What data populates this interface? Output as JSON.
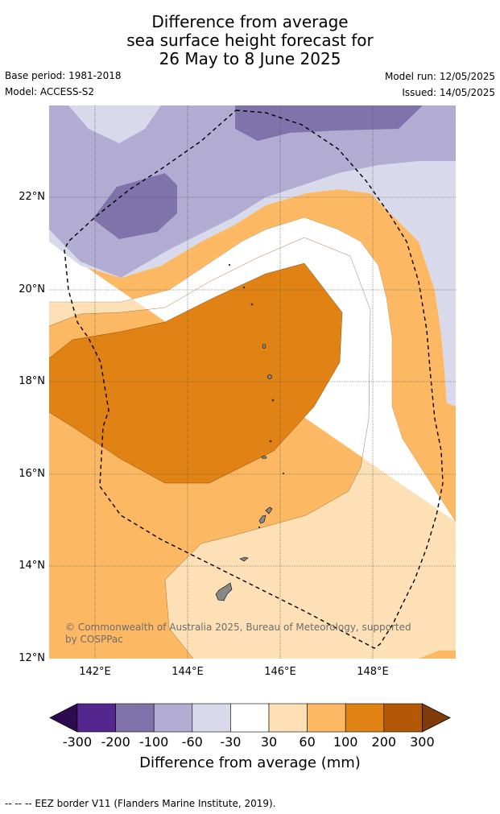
{
  "title": {
    "line1": "Difference from average",
    "line2": "sea surface height forecast for",
    "line3": "26 May to 8 June 2025"
  },
  "meta": {
    "base_period": "Base period: 1981-2018",
    "model": "Model: ACCESS-S2",
    "model_run": "Model run: 12/05/2025",
    "issued": "Issued: 14/05/2025"
  },
  "map": {
    "lat_labels": [
      "22°N",
      "20°N",
      "18°N",
      "16°N",
      "14°N",
      "12°N"
    ],
    "lon_labels": [
      "142°E",
      "144°E",
      "146°E",
      "148°E"
    ],
    "copyright": "© Commonwealth of Australia 2025, Bureau of Meteorology, supported by COSPPac"
  },
  "colorbar": {
    "ticks": [
      "-300",
      "-200",
      "-100",
      "-60",
      "-30",
      "30",
      "60",
      "100",
      "200",
      "300"
    ],
    "colors": [
      "#2d0b4e",
      "#54278f",
      "#8073ac",
      "#b2abd2",
      "#d8daeb",
      "#ffffff",
      "#fee0b6",
      "#fdb863",
      "#e08214",
      "#b35806",
      "#7f3b08"
    ],
    "title": "Difference from average (mm)"
  },
  "footer": "-- -- -- EEZ border V11 (Flanders Marine Institute, 2019)."
}
